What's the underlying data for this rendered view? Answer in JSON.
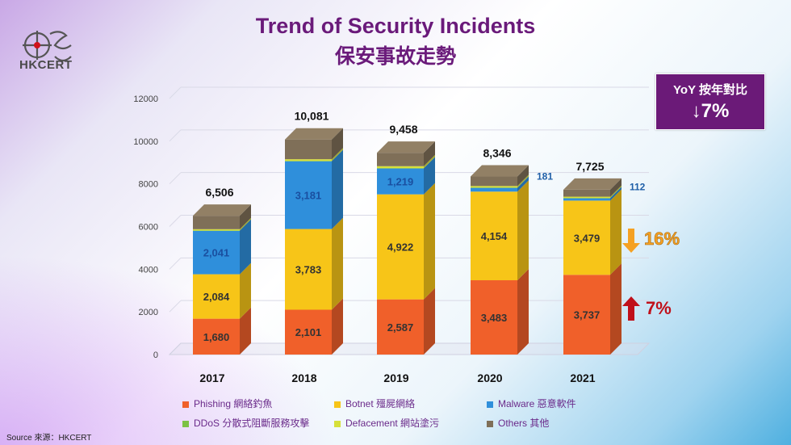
{
  "header": {
    "title_en": "Trend of Security Incidents",
    "title_zh": "保安事故走勢",
    "logo_text": "HKCERT"
  },
  "yoy_box": {
    "label": "YoY 按年對比",
    "value": "↓7%"
  },
  "source": "Source 來源：HKCERT",
  "colors": {
    "phishing": "#f0602a",
    "botnet": "#f7c518",
    "malware": "#2f8fdb",
    "ddos": "#7cc244",
    "defacement": "#d6e03a",
    "others": "#7f6f58",
    "down_arrow": "#f5a123",
    "up_arrow": "#c0101a",
    "brand": "#6b1a78"
  },
  "chart_data": {
    "type": "bar",
    "stacked": true,
    "three_d": true,
    "categories": [
      "2017",
      "2018",
      "2019",
      "2020",
      "2021"
    ],
    "ylim": [
      0,
      12000
    ],
    "yticks": [
      0,
      2000,
      4000,
      6000,
      8000,
      10000,
      12000
    ],
    "series": [
      {
        "key": "phishing",
        "name": "Phishing 網絡釣魚",
        "values": [
          1680,
          2101,
          2587,
          3483,
          3737
        ],
        "labels": [
          "1,680",
          "2,101",
          "2,587",
          "3,483",
          "3,737"
        ]
      },
      {
        "key": "botnet",
        "name": "Botnet 殭屍網絡",
        "values": [
          2084,
          3783,
          4922,
          4154,
          3479
        ],
        "labels": [
          "2,084",
          "3,783",
          "4,922",
          "4,154",
          "3,479"
        ]
      },
      {
        "key": "malware",
        "name": "Malware 惡意軟件",
        "values": [
          2041,
          3181,
          1219,
          181,
          112
        ],
        "labels": [
          "2,041",
          "3,181",
          "1,219",
          "181",
          "112"
        ]
      },
      {
        "key": "ddos",
        "name": "DDoS 分散式阻斷服務攻擊",
        "values": [
          10,
          10,
          10,
          10,
          10
        ],
        "labels": [
          "",
          "",
          "",
          "",
          ""
        ]
      },
      {
        "key": "defacement",
        "name": "Defacement 網站塗污",
        "values": [
          60,
          80,
          90,
          70,
          60
        ],
        "labels": [
          "",
          "",
          "",
          "",
          ""
        ]
      },
      {
        "key": "others",
        "name": "Others 其他",
        "values": [
          631,
          926,
          630,
          448,
          327
        ],
        "labels": [
          "",
          "",
          "",
          "",
          ""
        ]
      }
    ],
    "totals": [
      "6,506",
      "10,081",
      "9,458",
      "8,346",
      "7,725"
    ],
    "annotations": [
      {
        "text": "16%",
        "direction": "down",
        "series": "botnet"
      },
      {
        "text": "7%",
        "direction": "up",
        "series": "phishing"
      }
    ],
    "legend_position": "bottom"
  }
}
